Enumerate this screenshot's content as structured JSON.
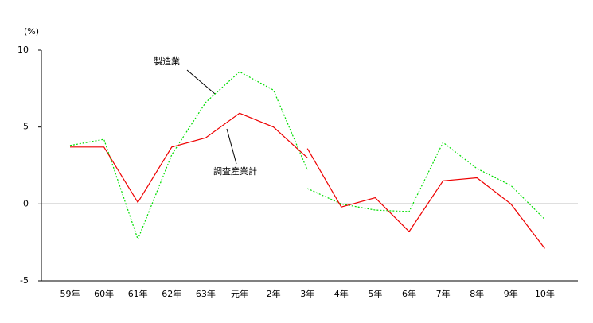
{
  "chart_data": {
    "type": "line",
    "unit_label": "(%)",
    "annotations": [
      "製造業",
      "調査産業計"
    ],
    "categories": [
      "59年",
      "60年",
      "61年",
      "62年",
      "63年",
      "元年",
      "2年",
      "3年",
      "4年",
      "5年",
      "6年",
      "7年",
      "8年",
      "9年",
      "10年"
    ],
    "series": [
      {
        "color": "#00dd00",
        "dashed": true,
        "values": [
          3.8,
          4.2,
          -2.3,
          3.2,
          6.6,
          8.6,
          7.4,
          2.2,
          null,
          null,
          null,
          null,
          null,
          null,
          null
        ]
      },
      {
        "color": "#00dd00",
        "dashed": true,
        "values": [
          null,
          null,
          null,
          null,
          null,
          null,
          null,
          1.0,
          0.0,
          -0.4,
          -0.5,
          4.0,
          2.3,
          1.2,
          -1.0
        ]
      },
      {
        "color": "#ee0000",
        "dashed": false,
        "values": [
          3.7,
          3.7,
          0.1,
          3.7,
          4.3,
          5.9,
          5.0,
          3.0,
          null,
          null,
          null,
          null,
          null,
          null,
          null
        ]
      },
      {
        "color": "#ee0000",
        "dashed": false,
        "values": [
          null,
          null,
          null,
          null,
          null,
          null,
          null,
          3.6,
          -0.2,
          0.4,
          -1.8,
          1.5,
          1.7,
          0.0,
          -2.9
        ]
      }
    ],
    "ylim": [
      -5,
      10
    ],
    "yticks": [
      -5,
      0,
      5,
      10
    ],
    "zero_line": true
  }
}
